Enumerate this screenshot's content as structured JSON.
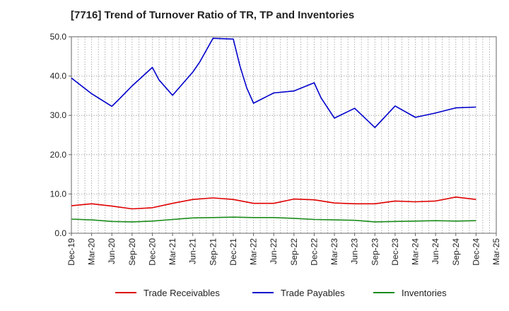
{
  "chart_data": {
    "type": "line",
    "title": "[7716]  Trend of Turnover Ratio of TR, TP and Inventories",
    "xlabel": "",
    "ylabel": "",
    "ylim": [
      0,
      50
    ],
    "yticks": [
      "0.0",
      "10.0",
      "20.0",
      "30.0",
      "40.0",
      "50.0"
    ],
    "categories": [
      "Dec-19",
      "Jan-20",
      "Feb-20",
      "Mar-20",
      "Apr-20",
      "May-20",
      "Jun-20",
      "Jul-20",
      "Aug-20",
      "Sep-20",
      "Oct-20",
      "Nov-20",
      "Dec-20",
      "Jan-21",
      "Feb-21",
      "Mar-21",
      "Apr-21",
      "May-21",
      "Jun-21",
      "Jul-21",
      "Aug-21",
      "Sep-21",
      "Oct-21",
      "Nov-21",
      "Dec-21",
      "Jan-22",
      "Feb-22",
      "Mar-22",
      "Apr-22",
      "May-22",
      "Jun-22",
      "Jul-22",
      "Aug-22",
      "Sep-22",
      "Oct-22",
      "Nov-22",
      "Dec-22",
      "Jan-23",
      "Feb-23",
      "Mar-23",
      "Apr-23",
      "May-23",
      "Jun-23",
      "Jul-23",
      "Aug-23",
      "Sep-23",
      "Oct-23",
      "Nov-23",
      "Dec-23",
      "Jan-24",
      "Feb-24",
      "Mar-24",
      "Apr-24",
      "May-24",
      "Jun-24",
      "Jul-24",
      "Aug-24",
      "Sep-24",
      "Oct-24",
      "Nov-24",
      "Dec-24",
      "Jan-25",
      "Feb-25",
      "Mar-25"
    ],
    "xtick_labels": [
      "Dec-19",
      "Mar-20",
      "Jun-20",
      "Sep-20",
      "Dec-20",
      "Mar-21",
      "Jun-21",
      "Sep-21",
      "Dec-21",
      "Mar-22",
      "Jun-22",
      "Sep-22",
      "Dec-22",
      "Mar-23",
      "Jun-23",
      "Sep-23",
      "Dec-23",
      "Mar-24",
      "Jun-24",
      "Sep-24",
      "Dec-24",
      "Mar-25"
    ],
    "grid": true,
    "legend_position": "bottom",
    "series": [
      {
        "name": "Trade Receivables",
        "color": "#e00000",
        "points": [
          [
            "Dec-19",
            7.0
          ],
          [
            "Mar-20",
            7.5
          ],
          [
            "Jun-20",
            6.9
          ],
          [
            "Sep-20",
            6.2
          ],
          [
            "Dec-20",
            6.5
          ],
          [
            "Mar-21",
            7.6
          ],
          [
            "Jun-21",
            8.6
          ],
          [
            "Sep-21",
            9.0
          ],
          [
            "Dec-21",
            8.6
          ],
          [
            "Mar-22",
            7.6
          ],
          [
            "Jun-22",
            7.6
          ],
          [
            "Sep-22",
            8.7
          ],
          [
            "Dec-22",
            8.5
          ],
          [
            "Mar-23",
            7.7
          ],
          [
            "Jun-23",
            7.5
          ],
          [
            "Sep-23",
            7.5
          ],
          [
            "Dec-23",
            8.2
          ],
          [
            "Mar-24",
            8.0
          ],
          [
            "Jun-24",
            8.2
          ],
          [
            "Sep-24",
            9.2
          ],
          [
            "Dec-24",
            8.6
          ]
        ]
      },
      {
        "name": "Trade Payables",
        "color": "#0000cc",
        "points": [
          [
            "Dec-19",
            39.5
          ],
          [
            "Mar-20",
            35.5
          ],
          [
            "Jun-20",
            32.3
          ],
          [
            "Jul-20",
            34.0
          ],
          [
            "Sep-20",
            37.5
          ],
          [
            "Dec-20",
            42.2
          ],
          [
            "Jan-21",
            39.0
          ],
          [
            "Mar-21",
            35.1
          ],
          [
            "Jun-21",
            41.0
          ],
          [
            "Jul-21",
            43.5
          ],
          [
            "Sep-21",
            49.6
          ],
          [
            "Dec-21",
            49.4
          ],
          [
            "Jan-22",
            42.5
          ],
          [
            "Feb-22",
            37.0
          ],
          [
            "Mar-22",
            33.1
          ],
          [
            "Jun-22",
            35.7
          ],
          [
            "Sep-22",
            36.2
          ],
          [
            "Dec-22",
            38.3
          ],
          [
            "Jan-23",
            34.5
          ],
          [
            "Mar-23",
            29.3
          ],
          [
            "Jun-23",
            31.8
          ],
          [
            "Sep-23",
            26.9
          ],
          [
            "Dec-23",
            32.4
          ],
          [
            "Mar-24",
            29.5
          ],
          [
            "Jun-24",
            30.6
          ],
          [
            "Sep-24",
            31.9
          ],
          [
            "Dec-24",
            32.1
          ]
        ]
      },
      {
        "name": "Inventories",
        "color": "#1a8c1a",
        "points": [
          [
            "Dec-19",
            3.6
          ],
          [
            "Mar-20",
            3.4
          ],
          [
            "Jun-20",
            3.0
          ],
          [
            "Sep-20",
            2.9
          ],
          [
            "Dec-20",
            3.1
          ],
          [
            "Mar-21",
            3.5
          ],
          [
            "Jun-21",
            3.9
          ],
          [
            "Sep-21",
            4.0
          ],
          [
            "Dec-21",
            4.1
          ],
          [
            "Mar-22",
            4.0
          ],
          [
            "Jun-22",
            4.0
          ],
          [
            "Sep-22",
            3.8
          ],
          [
            "Dec-22",
            3.5
          ],
          [
            "Mar-23",
            3.4
          ],
          [
            "Jun-23",
            3.3
          ],
          [
            "Sep-23",
            2.9
          ],
          [
            "Dec-23",
            3.0
          ],
          [
            "Mar-24",
            3.1
          ],
          [
            "Jun-24",
            3.2
          ],
          [
            "Sep-24",
            3.1
          ],
          [
            "Dec-24",
            3.2
          ]
        ]
      }
    ]
  }
}
